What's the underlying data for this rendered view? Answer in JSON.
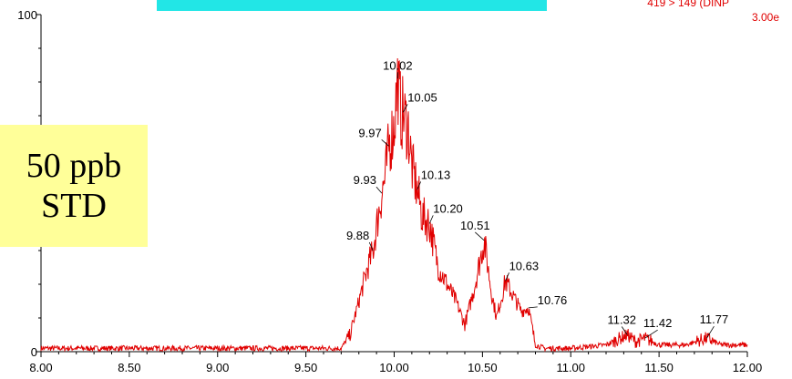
{
  "header": {
    "channel_line": "419 > 149 (DINP",
    "intensity_line": "3.00e"
  },
  "sample_label": {
    "line1": "50 ppb",
    "line2": "STD"
  },
  "colors": {
    "trace": "#e00000",
    "axis": "#000000",
    "label_box": "#ffff99",
    "header_bar": "#22e6e6"
  },
  "chart_data": {
    "type": "line",
    "xlim": [
      8.0,
      12.0
    ],
    "ylim": [
      0,
      100
    ],
    "x_ticks": [
      "8.00",
      "8.50",
      "9.00",
      "9.50",
      "10.00",
      "10.50",
      "11.00",
      "11.50",
      "12.00"
    ],
    "y_ticks": [
      "0",
      "100"
    ],
    "series": [
      {
        "x": [
          8.0,
          8.5,
          9.0,
          9.5,
          9.7,
          9.75,
          9.8,
          9.85,
          9.88,
          9.9,
          9.93,
          9.95,
          9.97,
          10.0,
          10.02,
          10.04,
          10.05,
          10.08,
          10.1,
          10.13,
          10.16,
          10.2,
          10.25,
          10.3,
          10.35,
          10.4,
          10.45,
          10.51,
          10.55,
          10.58,
          10.63,
          10.68,
          10.72,
          10.76,
          10.8,
          10.85,
          11.0,
          11.2,
          11.32,
          11.37,
          11.42,
          11.5,
          11.65,
          11.77,
          11.85,
          12.0
        ],
        "y": [
          1,
          1,
          1,
          1,
          1,
          5,
          15,
          25,
          30,
          37,
          47,
          52,
          61,
          67,
          81,
          70,
          71,
          66,
          55,
          48,
          40,
          38,
          25,
          20,
          15,
          8,
          18,
          33,
          18,
          10,
          21,
          16,
          12,
          13,
          2,
          1,
          1,
          2,
          5,
          3,
          4,
          2,
          2,
          4,
          2,
          2
        ]
      }
    ],
    "peak_labels": [
      {
        "text": "10.02",
        "x": 10.02,
        "y": 81
      },
      {
        "text": "10.05",
        "x": 10.05,
        "y": 71
      },
      {
        "text": "9.97",
        "x": 9.97,
        "y": 61
      },
      {
        "text": "10.13",
        "x": 10.13,
        "y": 48
      },
      {
        "text": "9.93",
        "x": 9.93,
        "y": 47
      },
      {
        "text": "10.20",
        "x": 10.2,
        "y": 38
      },
      {
        "text": "10.51",
        "x": 10.51,
        "y": 33
      },
      {
        "text": "9.88",
        "x": 9.88,
        "y": 30
      },
      {
        "text": "10.63",
        "x": 10.63,
        "y": 21
      },
      {
        "text": "10.76",
        "x": 10.76,
        "y": 13
      },
      {
        "text": "11.32",
        "x": 11.32,
        "y": 5
      },
      {
        "text": "11.42",
        "x": 11.42,
        "y": 4
      },
      {
        "text": "11.77",
        "x": 11.77,
        "y": 4
      }
    ]
  }
}
